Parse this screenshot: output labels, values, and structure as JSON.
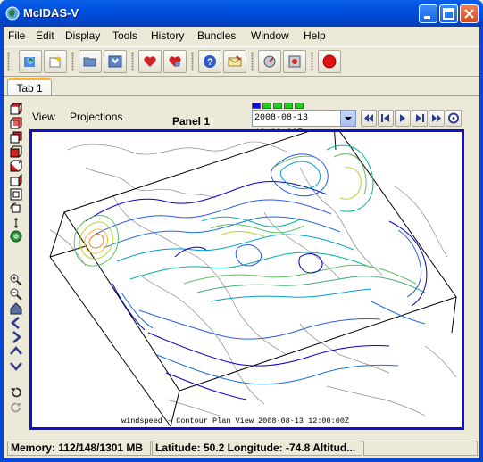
{
  "window": {
    "title": "McIDAS-V"
  },
  "menu": [
    "File",
    "Edit",
    "Display",
    "Tools",
    "History",
    "Bundles",
    "Window",
    "Help"
  ],
  "toolbar": {
    "buttons": [
      "dashboard-icon",
      "new-window-icon",
      "open-folder-icon",
      "save-icon",
      "favorite-icon",
      "favorites-manage-icon",
      "help-icon",
      "message-icon",
      "dataset-icon",
      "clear-icon",
      "stop-icon"
    ]
  },
  "tabs": [
    {
      "label": "Tab 1"
    }
  ],
  "panel": {
    "title": "Panel 1",
    "view_menu": "View",
    "projections_menu": "Projections"
  },
  "animation": {
    "time": "2008-08-13 12:00:00Z",
    "frames_on": 4,
    "frames_total": 5,
    "controls": [
      "first-frame-icon",
      "prev-frame-icon",
      "play-icon",
      "next-frame-icon",
      "last-frame-icon",
      "animation-settings-icon"
    ]
  },
  "display": {
    "caption": "windspeed - Contour Plan View 2008-08-13 12:00:00Z"
  },
  "status": {
    "memory": "Memory: 112/148/1301 MB",
    "location": "Latitude:  50.2 Longitude:  -74.8 Altitud..."
  },
  "colors": {
    "titlebar": "#0054E3",
    "display_border": "#1010CC",
    "contour_palette": [
      "#0000CC",
      "#2A5CE0",
      "#00A0C8",
      "#00B4A0",
      "#60C060",
      "#B8D030",
      "#F0C020",
      "#F08020"
    ]
  }
}
